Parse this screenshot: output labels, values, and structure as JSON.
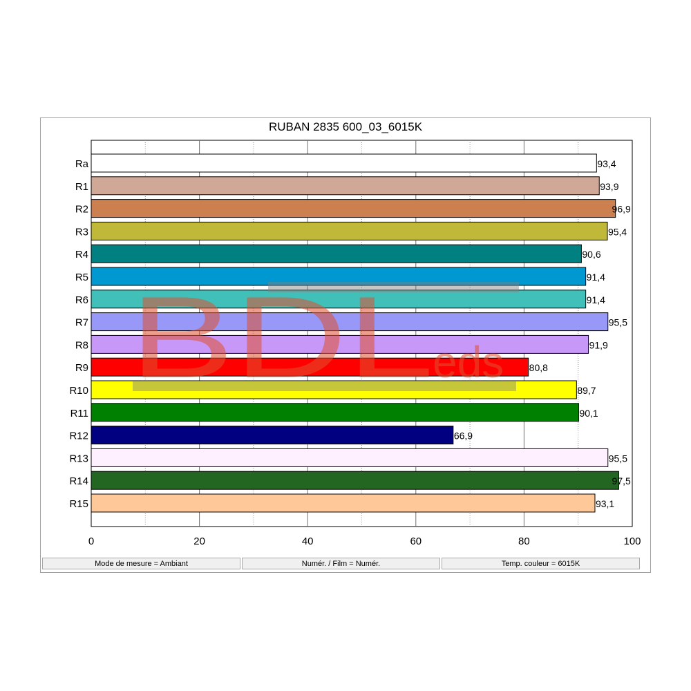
{
  "chart_data": {
    "type": "bar",
    "orientation": "horizontal",
    "title": "RUBAN 2835 600_03_6015K",
    "categories": [
      "Ra",
      "R1",
      "R2",
      "R3",
      "R4",
      "R5",
      "R6",
      "R7",
      "R8",
      "R9",
      "R10",
      "R11",
      "R12",
      "R13",
      "R14",
      "R15"
    ],
    "values": [
      93.4,
      93.9,
      96.9,
      95.4,
      90.6,
      91.4,
      91.4,
      95.5,
      91.9,
      80.8,
      89.7,
      90.1,
      66.9,
      95.5,
      97.5,
      93.1
    ],
    "value_labels": [
      "93,4",
      "93,9",
      "96,9",
      "95,4",
      "90,6",
      "91,4",
      "91,4",
      "95,5",
      "91,9",
      "80,8",
      "89,7",
      "90,1",
      "66,9",
      "95,5",
      "97,5",
      "93,1"
    ],
    "colors": [
      "#ffffff",
      "#d0a898",
      "#cc8050",
      "#c0b838",
      "#008080",
      "#0098d0",
      "#40c0b8",
      "#9898f8",
      "#c898f8",
      "#ff0000",
      "#ffff00",
      "#008000",
      "#000080",
      "#fff0ff",
      "#226622",
      "#ffc898"
    ],
    "xlim": [
      0,
      100
    ],
    "xticks": [
      "0",
      "20",
      "40",
      "60",
      "80",
      "100"
    ],
    "grid": true,
    "xlabel": "",
    "ylabel": ""
  },
  "status_bar": {
    "measure_mode": "Mode de mesure = Ambiant",
    "film": "Numér. / Film = Numér.",
    "color_temp": "Temp. couleur = 6015K"
  },
  "watermark": {
    "big": "BDL",
    "small": "eds"
  }
}
